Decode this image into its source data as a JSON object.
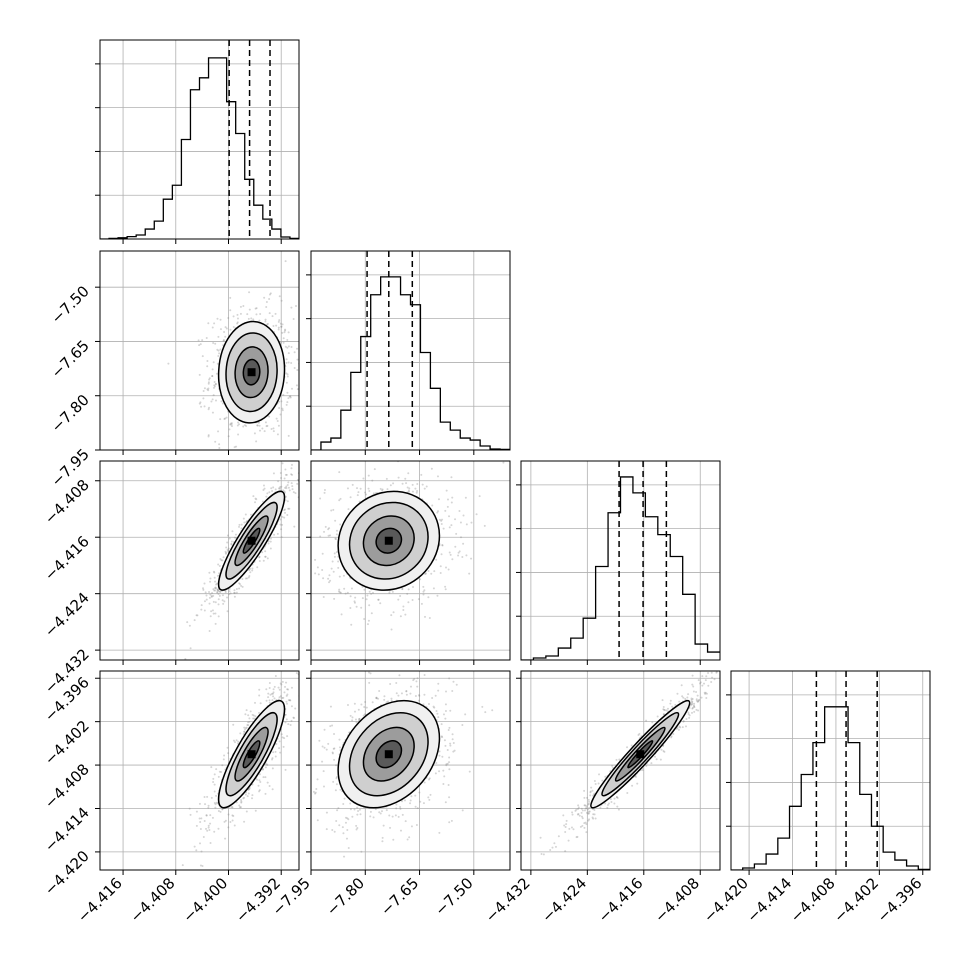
{
  "chart_data": {
    "type": "corner",
    "title": "",
    "grid": true,
    "params": [
      {
        "range": [
          -4.4195,
          -4.3893
        ],
        "ticks": [
          -4.416,
          -4.408,
          -4.4,
          -4.392
        ],
        "tick_labels": [
          "−4.416",
          "−4.408",
          "−4.400",
          "−4.392"
        ],
        "quantiles": [
          -4.3999,
          -4.3968,
          -4.3937
        ]
      },
      {
        "range": [
          -7.95,
          -7.4
        ],
        "ticks": [
          -7.95,
          -7.8,
          -7.65,
          -7.5
        ],
        "tick_labels": [
          "−7.95",
          "−7.80",
          "−7.65",
          "−7.50"
        ],
        "quantiles": [
          -7.795,
          -7.735,
          -7.67
        ]
      },
      {
        "range": [
          -4.4334,
          -4.4052
        ],
        "ticks": [
          -4.432,
          -4.424,
          -4.416,
          -4.408
        ],
        "tick_labels": [
          "−4.432",
          "−4.424",
          "−4.416",
          "−4.408"
        ],
        "quantiles": [
          -4.4195,
          -4.4161,
          -4.4128
        ]
      },
      {
        "range": [
          -4.4225,
          -4.395
        ],
        "ticks": [
          -4.42,
          -4.414,
          -4.408,
          -4.402,
          -4.396
        ],
        "tick_labels": [
          "−4.420",
          "−4.414",
          "−4.408",
          "−4.402",
          "−4.396"
        ],
        "quantiles": [
          -4.4107,
          -4.4066,
          -4.4023
        ]
      }
    ],
    "histograms": [
      [
        0,
        0.003,
        0.006,
        0.012,
        0.02,
        0.05,
        0.09,
        0.2,
        0.27,
        0.5,
        0.75,
        0.81,
        0.91,
        0.91,
        0.69,
        0.53,
        0.3,
        0.17,
        0.1,
        0.05,
        0.01,
        0.003
      ],
      [
        0,
        0.04,
        0.06,
        0.2,
        0.39,
        0.57,
        0.78,
        0.87,
        0.87,
        0.78,
        0.73,
        0.49,
        0.31,
        0.14,
        0.1,
        0.06,
        0.05,
        0.02,
        0.005,
        0.003
      ],
      [
        0,
        0.01,
        0.02,
        0.06,
        0.11,
        0.21,
        0.47,
        0.74,
        0.92,
        0.84,
        0.72,
        0.63,
        0.52,
        0.33,
        0.08,
        0.04
      ],
      [
        0,
        0.01,
        0.03,
        0.08,
        0.16,
        0.32,
        0.48,
        0.64,
        0.82,
        0.82,
        0.64,
        0.38,
        0.22,
        0.09,
        0.05,
        0.02,
        0.003
      ]
    ],
    "pairs": [
      {
        "row": 1,
        "col": 0,
        "center": [
          -4.3965,
          -7.735
        ],
        "sd": [
          0.0025,
          0.07
        ],
        "corr": 0.05
      },
      {
        "row": 2,
        "col": 0,
        "center": [
          -4.3965,
          -4.4165
        ],
        "sd": [
          0.0025,
          0.0035
        ],
        "corr": 0.88
      },
      {
        "row": 2,
        "col": 1,
        "center": [
          -7.735,
          -4.4165
        ],
        "sd": [
          0.07,
          0.0035
        ],
        "corr": 0.1
      },
      {
        "row": 3,
        "col": 0,
        "center": [
          -4.3965,
          -4.4065
        ],
        "sd": [
          0.0025,
          0.0037
        ],
        "corr": 0.84
      },
      {
        "row": 3,
        "col": 1,
        "center": [
          -7.735,
          -4.4065
        ],
        "sd": [
          0.07,
          0.0037
        ],
        "corr": 0.3
      },
      {
        "row": 3,
        "col": 2,
        "center": [
          -4.4165,
          -4.4065
        ],
        "sd": [
          0.0035,
          0.0037
        ],
        "corr": 0.96
      }
    ]
  }
}
